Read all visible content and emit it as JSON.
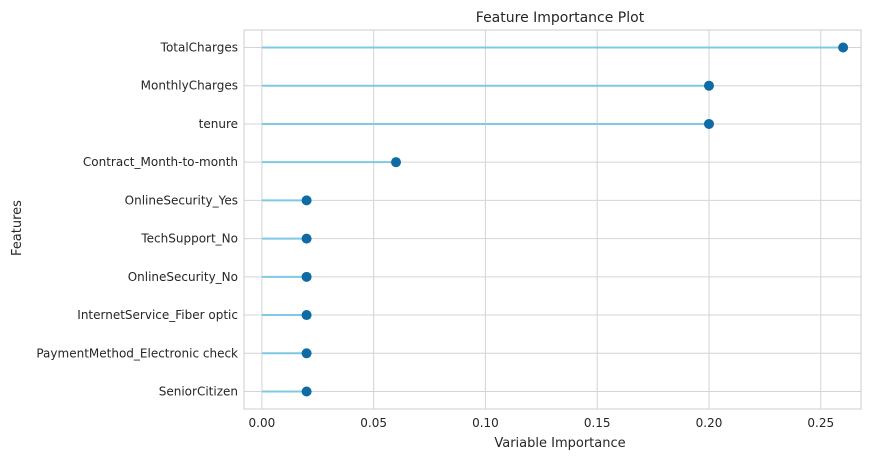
{
  "chart_data": {
    "type": "lollipop",
    "title": "Feature Importance Plot",
    "xlabel": "Variable Importance",
    "ylabel": "Features",
    "xlim": [
      -0.008,
      0.268
    ],
    "xticks": [
      0.0,
      0.05,
      0.1,
      0.15,
      0.2,
      0.25
    ],
    "xtick_labels": [
      "0.00",
      "0.05",
      "0.10",
      "0.15",
      "0.20",
      "0.25"
    ],
    "grid": true,
    "categories": [
      "TotalCharges",
      "MonthlyCharges",
      "tenure",
      "Contract_Month-to-month",
      "OnlineSecurity_Yes",
      "TechSupport_No",
      "OnlineSecurity_No",
      "InternetService_Fiber optic",
      "PaymentMethod_Electronic check",
      "SeniorCitizen"
    ],
    "values": [
      0.26,
      0.2,
      0.2,
      0.06,
      0.02,
      0.02,
      0.02,
      0.02,
      0.02,
      0.02
    ],
    "colors": {
      "stem": "#7fc8e6",
      "marker": "#0e6ba3",
      "grid": "#d4d4d4",
      "frame": "#cccccc"
    }
  }
}
